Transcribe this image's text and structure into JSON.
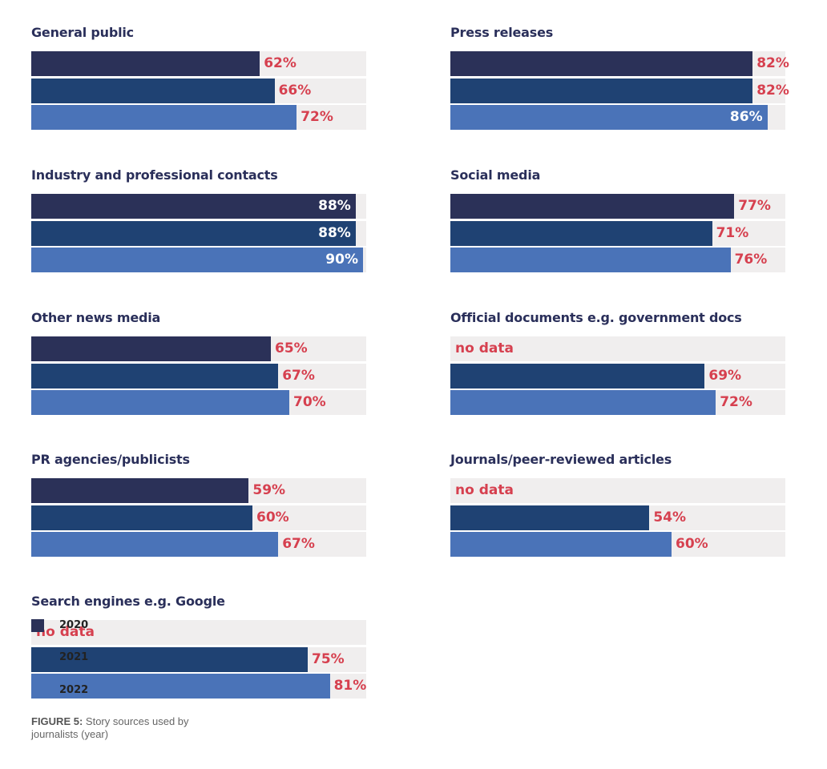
{
  "chart_data": {
    "type": "bar",
    "orientation": "horizontal",
    "xlim": [
      0,
      100
    ],
    "value_suffix": "%",
    "no_data_label": "no data",
    "legend": {
      "placement": "bottom-left",
      "entries": [
        {
          "label": "2020",
          "color": "#2b3158"
        },
        {
          "label": "2021",
          "color": "#1f4273"
        },
        {
          "label": "2022",
          "color": "#4a73b8"
        }
      ]
    },
    "panels": [
      {
        "title": "General public",
        "values": [
          62,
          66,
          72
        ]
      },
      {
        "title": "Press releases",
        "values": [
          82,
          82,
          86
        ]
      },
      {
        "title": "Industry and professional contacts",
        "values": [
          88,
          88,
          90
        ]
      },
      {
        "title": "Social media",
        "values": [
          77,
          71,
          76
        ]
      },
      {
        "title": "Other news media",
        "values": [
          65,
          67,
          70
        ]
      },
      {
        "title": "Official documents e.g. government docs",
        "values": [
          null,
          69,
          72
        ]
      },
      {
        "title": "PR agencies/publicists",
        "values": [
          59,
          60,
          67
        ]
      },
      {
        "title": "Journals/peer-reviewed articles",
        "values": [
          null,
          54,
          60
        ]
      },
      {
        "title": "Search engines e.g. Google",
        "values": [
          null,
          75,
          81
        ]
      }
    ]
  },
  "caption": {
    "label": "FIGURE 5:",
    "text": " Story sources used by journalists (year)"
  }
}
